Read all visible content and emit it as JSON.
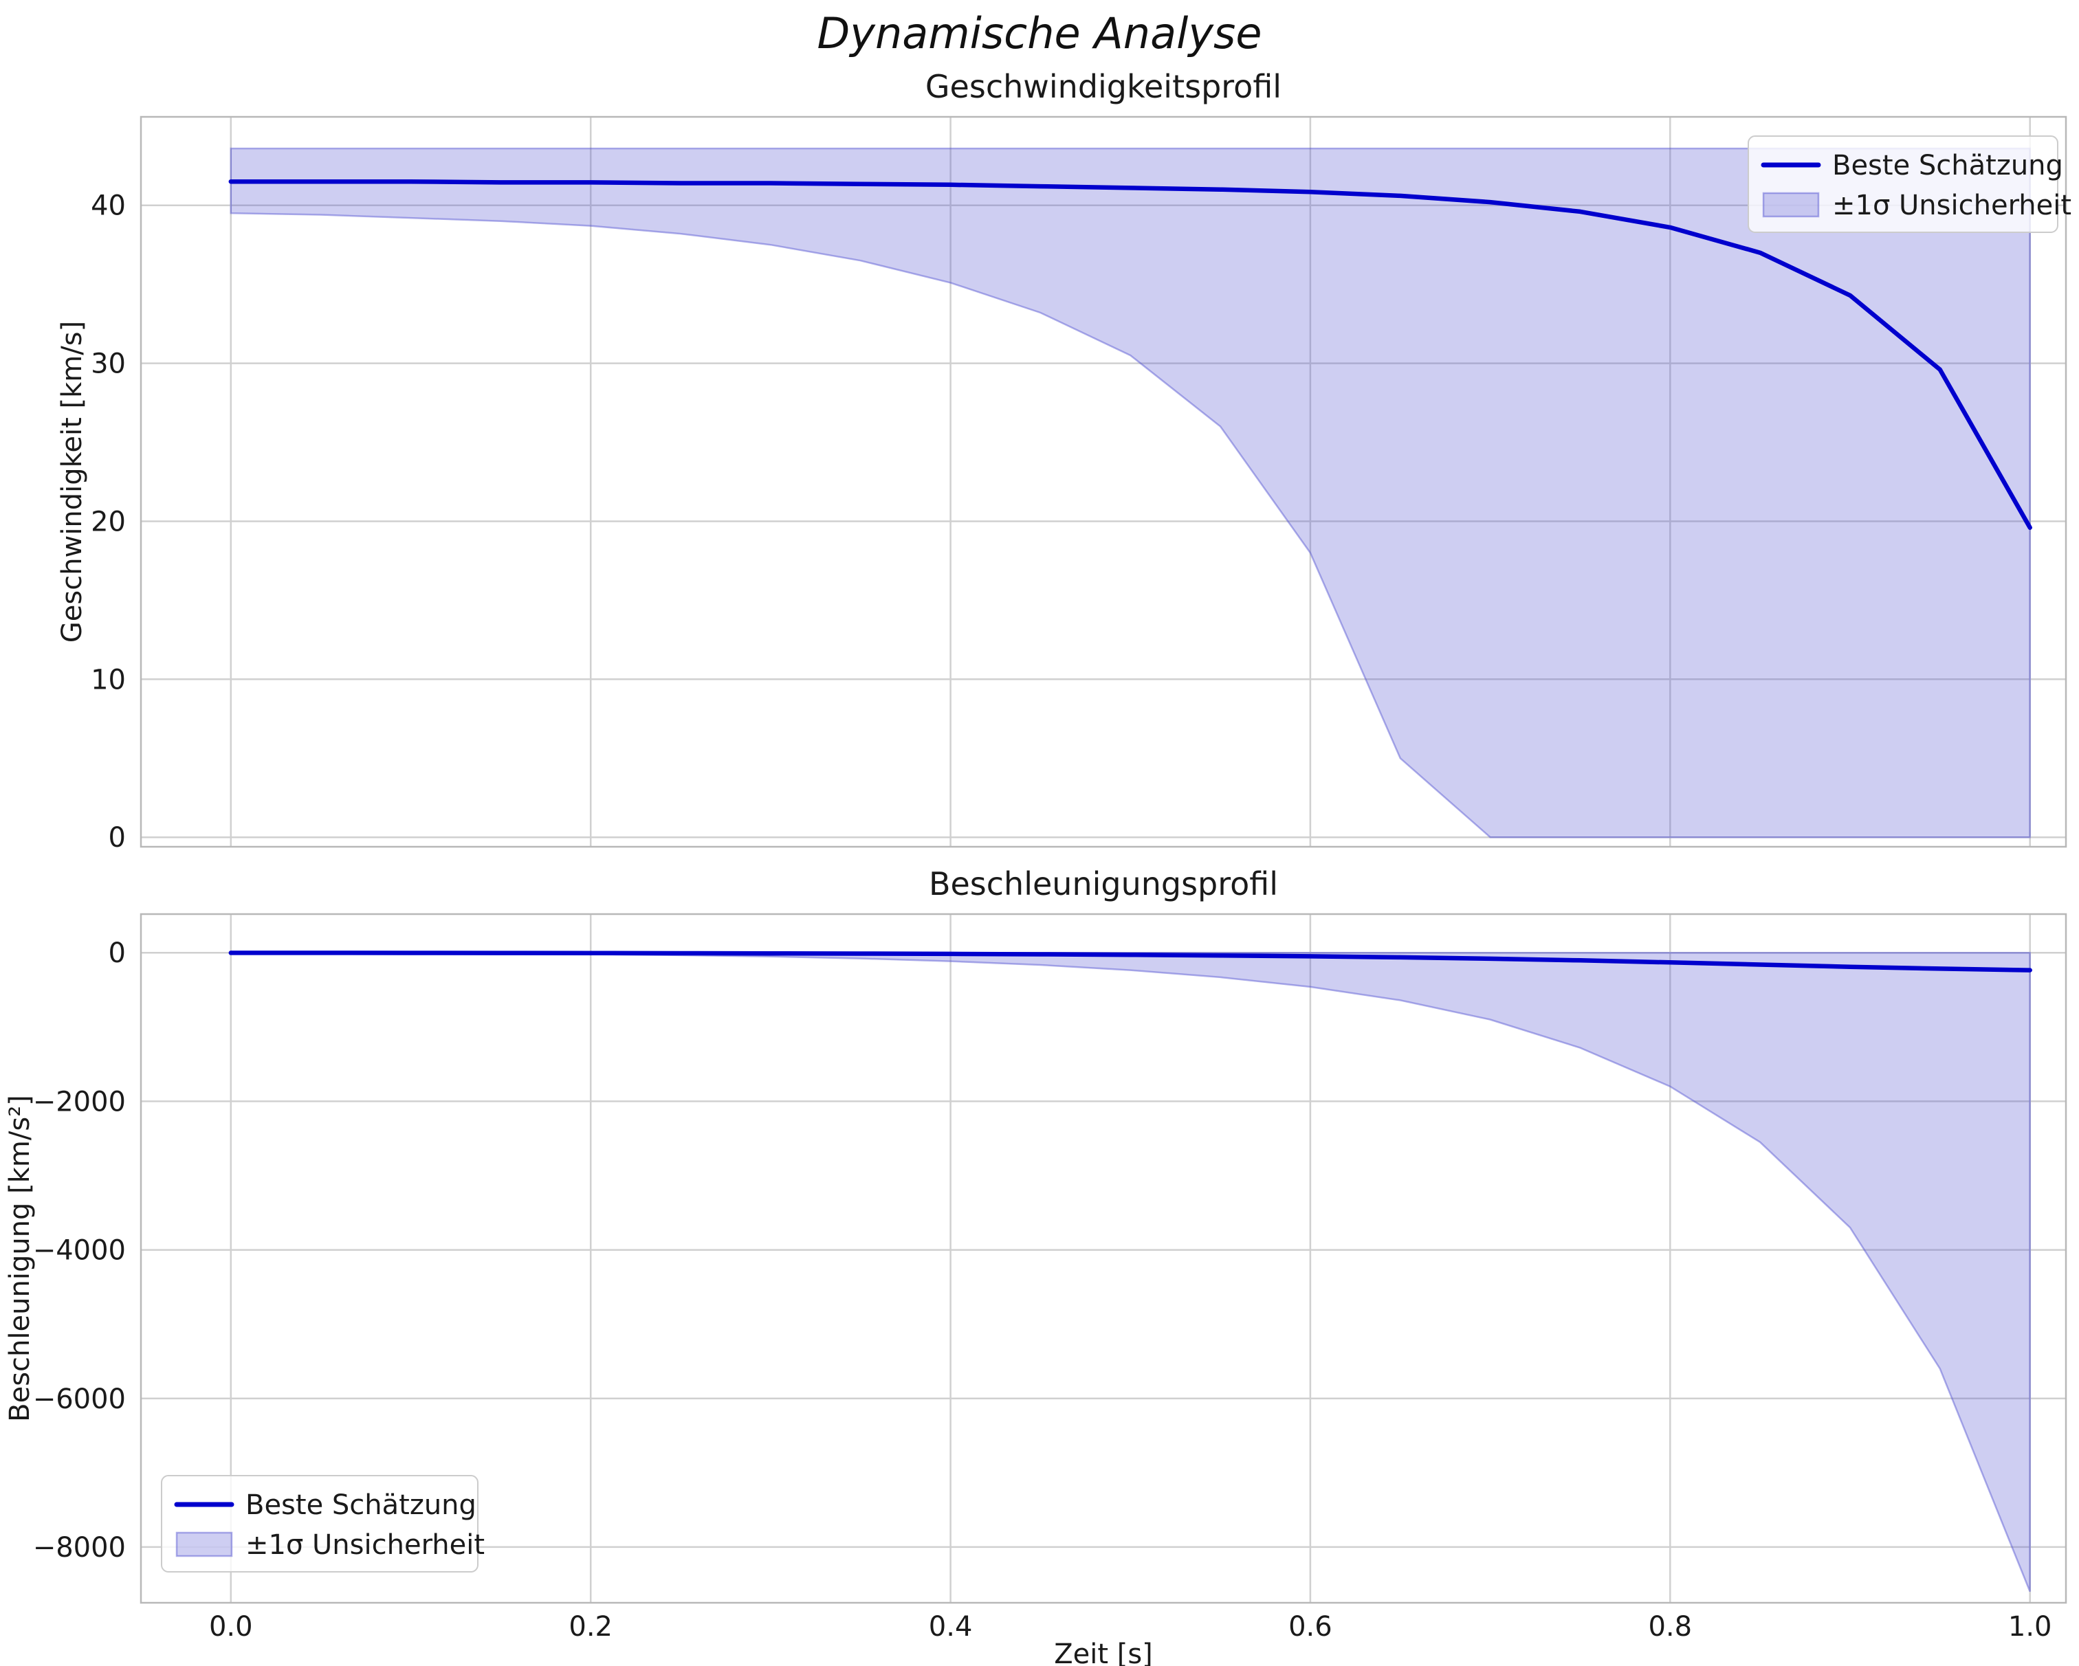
{
  "figure": {
    "suptitle": "Dynamische Analyse"
  },
  "style": {
    "line_color": "#0000cd",
    "band_color": "#5050d0",
    "band_fill_alpha": 0.28,
    "band_edge_alpha": 0.45,
    "grid_color": "#d0d0d0",
    "spine_color": "#b8b8b8",
    "text_color": "#1a1a1a",
    "legend_bg": "rgba(255,255,255,0.8)",
    "legend_border": "#cccccc",
    "background": "#ffffff"
  },
  "chart_data": [
    {
      "type": "line",
      "title": "Geschwindigkeitsprofil",
      "xlabel": "",
      "ylabel": "Geschwindigkeit [km/s]",
      "xlim": [
        -0.05,
        1.02
      ],
      "ylim": [
        -0.6,
        45.6
      ],
      "grid": true,
      "xticks": {
        "values": [
          0.0,
          0.2,
          0.4,
          0.6,
          0.8,
          1.0
        ],
        "labels": []
      },
      "yticks": {
        "values": [
          0,
          10,
          20,
          30,
          40
        ],
        "labels": [
          "0",
          "10",
          "20",
          "30",
          "40"
        ]
      },
      "x": [
        0.0,
        0.05,
        0.1,
        0.15,
        0.2,
        0.25,
        0.3,
        0.35,
        0.4,
        0.45,
        0.5,
        0.55,
        0.6,
        0.65,
        0.7,
        0.75,
        0.8,
        0.85,
        0.9,
        0.95,
        1.0
      ],
      "series": [
        {
          "name": "Beste Schätzung",
          "type": "line",
          "values": [
            41.5,
            41.5,
            41.5,
            41.45,
            41.45,
            41.4,
            41.4,
            41.35,
            41.3,
            41.2,
            41.1,
            41.0,
            40.85,
            40.6,
            40.2,
            39.6,
            38.6,
            37.0,
            34.3,
            29.6,
            19.6
          ]
        },
        {
          "name": "±1σ Unsicherheit",
          "type": "band",
          "upper": [
            43.6,
            43.6,
            43.6,
            43.6,
            43.6,
            43.6,
            43.6,
            43.6,
            43.6,
            43.6,
            43.6,
            43.6,
            43.6,
            43.6,
            43.6,
            43.6,
            43.6,
            43.6,
            43.6,
            43.6,
            43.6
          ],
          "lower": [
            39.5,
            39.4,
            39.2,
            39.0,
            38.7,
            38.2,
            37.5,
            36.5,
            35.1,
            33.2,
            30.5,
            26.0,
            18.0,
            5.0,
            0,
            0,
            0,
            0,
            0,
            0,
            0
          ]
        }
      ],
      "legend": {
        "entries": [
          "Beste Schätzung",
          "±1σ Unsicherheit"
        ],
        "position": "upper-right"
      }
    },
    {
      "type": "line",
      "title": "Beschleunigungsprofil",
      "xlabel": "Zeit [s]",
      "ylabel": "Beschleunigung [km/s²]",
      "xlim": [
        -0.05,
        1.02
      ],
      "ylim": [
        -8750,
        520
      ],
      "grid": true,
      "xticks": {
        "values": [
          0.0,
          0.2,
          0.4,
          0.6,
          0.8,
          1.0
        ],
        "labels": [
          "0.0",
          "0.2",
          "0.4",
          "0.6",
          "0.8",
          "1.0"
        ]
      },
      "yticks": {
        "values": [
          0,
          -2000,
          -4000,
          -6000,
          -8000
        ],
        "labels": [
          "0",
          "−2000",
          "−4000",
          "−6000",
          "−8000"
        ]
      },
      "x": [
        0.0,
        0.05,
        0.1,
        0.15,
        0.2,
        0.25,
        0.3,
        0.35,
        0.4,
        0.45,
        0.5,
        0.55,
        0.6,
        0.65,
        0.7,
        0.75,
        0.8,
        0.85,
        0.9,
        0.95,
        1.0
      ],
      "series": [
        {
          "name": "Beste Schätzung",
          "type": "line",
          "values": [
            -2,
            -2,
            -3,
            -4,
            -5,
            -7,
            -9,
            -12,
            -16,
            -21,
            -28,
            -37,
            -48,
            -62,
            -80,
            -103,
            -130,
            -160,
            -190,
            -215,
            -235
          ]
        },
        {
          "name": "±1σ Unsicherheit",
          "type": "band",
          "upper": [
            -1,
            -1,
            -1,
            -1,
            -1,
            -1,
            -1,
            -1,
            -1,
            -1,
            -1,
            -1,
            -1,
            -1,
            -1,
            -1,
            -1,
            -1,
            -1,
            -1,
            -1
          ],
          "lower": [
            -4,
            -6,
            -9,
            -14,
            -22,
            -34,
            -52,
            -78,
            -115,
            -165,
            -235,
            -330,
            -460,
            -640,
            -900,
            -1280,
            -1800,
            -2550,
            -3700,
            -5600,
            -8600
          ]
        }
      ],
      "legend": {
        "entries": [
          "Beste Schätzung",
          "±1σ Unsicherheit"
        ],
        "position": "lower-left"
      }
    }
  ]
}
